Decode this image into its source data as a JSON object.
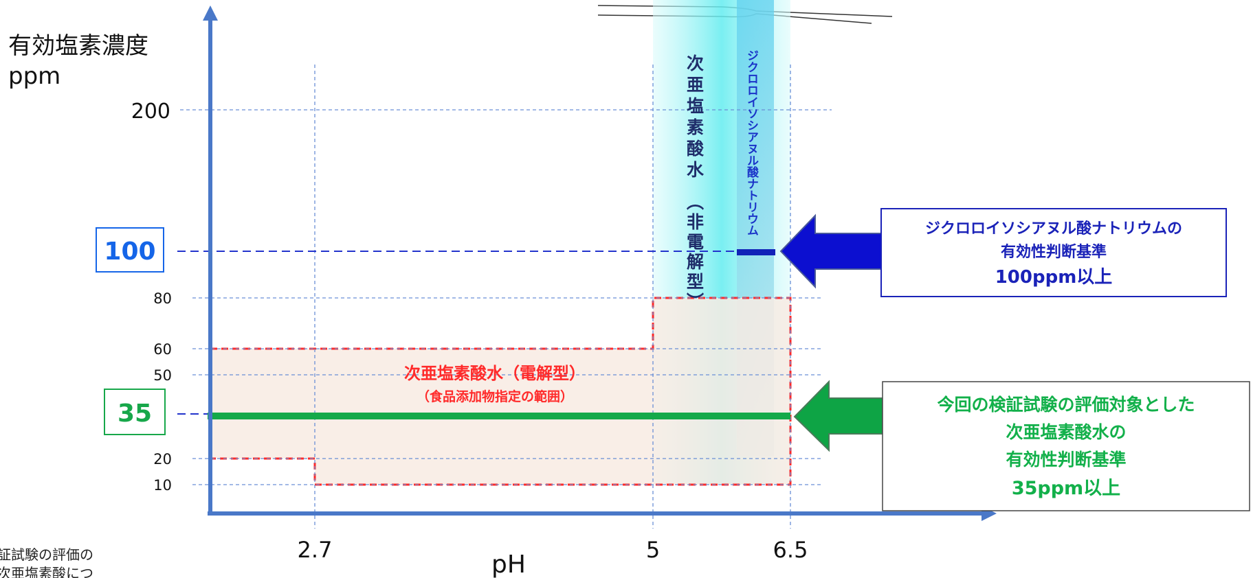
{
  "y_axis": {
    "title_line1": "有効塩素濃度",
    "title_line2": "ppm"
  },
  "x_axis": {
    "title": "pH"
  },
  "y_ticks": [
    {
      "value": 200,
      "label": "200"
    },
    {
      "value": 80,
      "label": "80"
    },
    {
      "value": 60,
      "label": "60"
    },
    {
      "value": 50,
      "label": "50"
    },
    {
      "value": 20,
      "label": "20"
    },
    {
      "value": 10,
      "label": "10"
    }
  ],
  "x_ticks": [
    {
      "value": 2.7,
      "label": "2.7"
    },
    {
      "value": 5,
      "label": "5"
    },
    {
      "value": 6.5,
      "label": "6.5"
    }
  ],
  "markers": {
    "m100": {
      "value": 100,
      "label": "100",
      "color": "#1565e8"
    },
    "m35": {
      "value": 35,
      "label": "35",
      "color": "#17a74a"
    }
  },
  "bands": {
    "hypochlorous_non_electrolytic": {
      "label_line1": "次亜塩素酸水",
      "label_line2": "（非電解型）",
      "ph_range": [
        5,
        6.5
      ],
      "color": "#7ff4f4"
    },
    "dichloroisocyanurate": {
      "label": "ジクロロイソシアヌル酸ナトリウム",
      "color": "#1a33c8"
    }
  },
  "regions": {
    "electrolytic": {
      "label_line1": "次亜塩素酸水（電解型）",
      "label_line2": "（食品添加物指定の範囲）",
      "color": "#ff2a2a",
      "fill": "#fbeee6"
    }
  },
  "callouts": {
    "dcc": {
      "line1": "ジクロロイソシアヌル酸ナトリウムの",
      "line2": "有効性判断基準",
      "line3": "100ppm以上",
      "color": "#1a22b8",
      "arrow_color": "#0c0fd0"
    },
    "hoc": {
      "line1": "今回の検証試験の評価対象とした",
      "line2": "次亜塩素酸水の",
      "line3": "有効性判断基準",
      "line4": "35ppm以上",
      "color": "#12b04a",
      "arrow_color": "#0ea445"
    }
  },
  "footnote": {
    "line1": "証試験の評価の",
    "line2": "次亜塩素酸につ"
  },
  "colors": {
    "axis": "#4a78c8",
    "grid": "#6a8fd6"
  }
}
